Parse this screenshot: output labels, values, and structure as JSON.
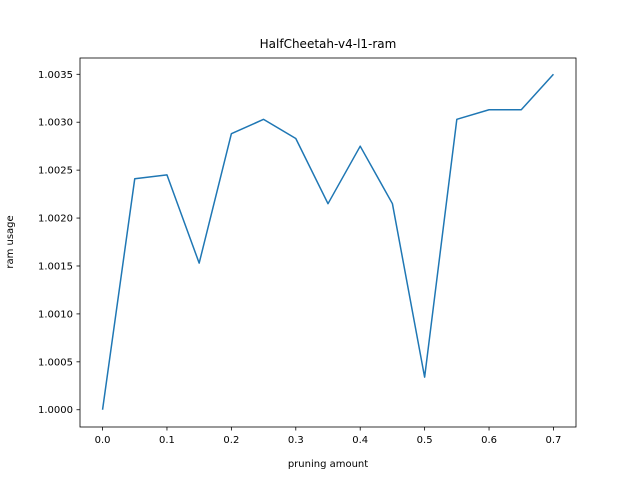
{
  "chart_data": {
    "type": "line",
    "title": "HalfCheetah-v4-l1-ram",
    "xlabel": "pruning amount",
    "ylabel": "ram usage",
    "grid": false,
    "xlim": [
      -0.035,
      0.735
    ],
    "ylim": [
      0.99982,
      1.00367
    ],
    "xticks": [
      0.0,
      0.1,
      0.2,
      0.3,
      0.4,
      0.5,
      0.6,
      0.7
    ],
    "xtick_labels": [
      "0.0",
      "0.1",
      "0.2",
      "0.3",
      "0.4",
      "0.5",
      "0.6",
      "0.7"
    ],
    "yticks": [
      1.0,
      1.0005,
      1.001,
      1.0015,
      1.002,
      1.0025,
      1.003,
      1.0035
    ],
    "ytick_labels": [
      "1.0000",
      "1.0005",
      "1.0010",
      "1.0015",
      "1.0020",
      "1.0025",
      "1.0030",
      "1.0035"
    ],
    "series": [
      {
        "color": "#1f77b4",
        "x": [
          0.0,
          0.05,
          0.1,
          0.15,
          0.2,
          0.25,
          0.3,
          0.35,
          0.4,
          0.45,
          0.5,
          0.55,
          0.6,
          0.65,
          0.7
        ],
        "y": [
          1.0,
          1.00241,
          1.00245,
          1.00153,
          1.00288,
          1.00303,
          1.00283,
          1.00215,
          1.00275,
          1.00215,
          1.00034,
          1.00303,
          1.00313,
          1.00313,
          1.0035
        ]
      }
    ]
  }
}
